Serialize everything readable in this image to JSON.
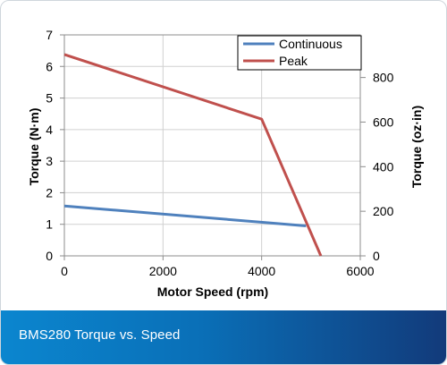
{
  "chart_data": {
    "type": "line",
    "title": "",
    "xlabel": "Motor Speed (rpm)",
    "ylabel_left": "Torque (N·m)",
    "ylabel_right": "Torque (oz·in)",
    "xlim": [
      0,
      6000
    ],
    "ylim_left": [
      0,
      7
    ],
    "ylim_right": [
      0,
      991
    ],
    "x_ticks": [
      "0",
      "2000",
      "4000",
      "6000"
    ],
    "y_left_ticks": [
      "0",
      "1",
      "2",
      "3",
      "4",
      "5",
      "6",
      "7"
    ],
    "y_right_ticks": [
      "0",
      "200",
      "400",
      "600",
      "800"
    ],
    "y_right_tick_values": [
      0,
      200,
      400,
      600,
      800
    ],
    "x_tick_values": [
      0,
      2000,
      4000,
      6000
    ],
    "y_left_tick_values": [
      0,
      1,
      2,
      3,
      4,
      5,
      6,
      7
    ],
    "grid": true,
    "legend_position": "top-right",
    "series": [
      {
        "name": "Continuous",
        "color": "#4f81bd",
        "x": [
          0,
          4900
        ],
        "y": [
          1.58,
          0.95
        ]
      },
      {
        "name": "Peak",
        "color": "#c0504d",
        "x": [
          0,
          4000,
          5200
        ],
        "y": [
          6.38,
          4.33,
          0
        ]
      }
    ]
  },
  "caption": {
    "text": "BMS280 Torque vs. Speed"
  }
}
